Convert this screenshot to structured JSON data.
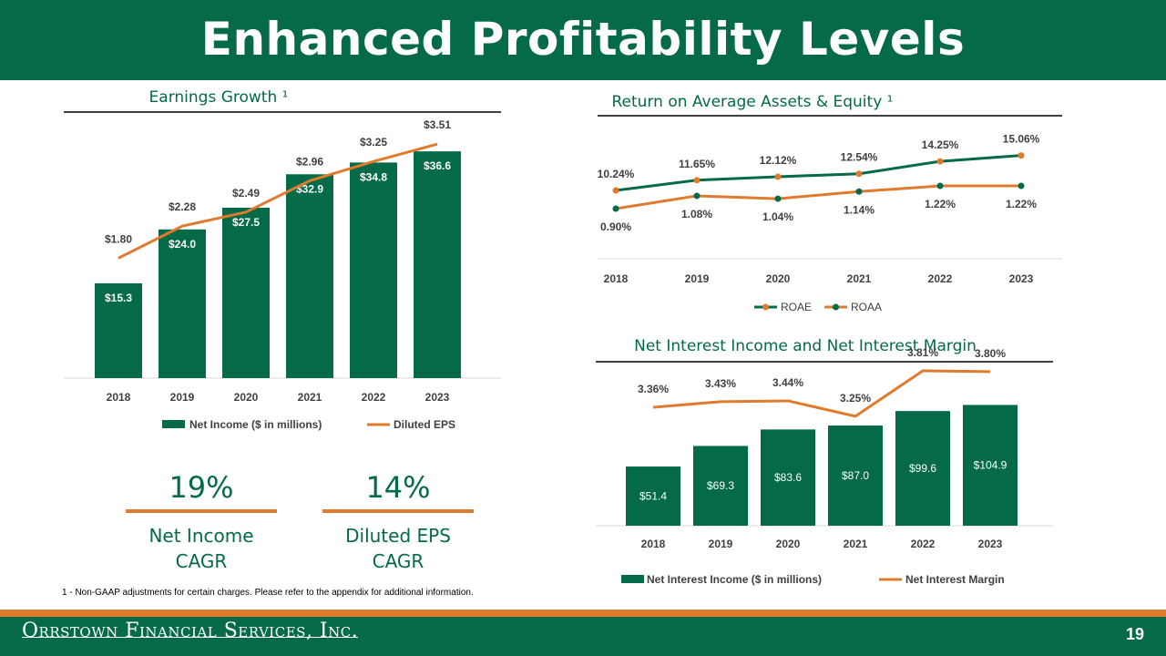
{
  "header": {
    "title": "Enhanced Profitability Levels"
  },
  "colors": {
    "green": "#046A48",
    "orange": "#E07B2E",
    "gridline": "#D9D9D9"
  },
  "kpis": [
    {
      "value": "19%",
      "label_line1": "Net Income",
      "label_line2": "CAGR"
    },
    {
      "value": "14%",
      "label_line1": "Diluted EPS",
      "label_line2": "CAGR"
    }
  ],
  "footnote": "1 - Non-GAAP adjustments for certain charges. Please refer to the appendix for additional information.",
  "footer": {
    "company": "Orrstown Financial Services, Inc.",
    "page_number": "19"
  },
  "chart_data": [
    {
      "id": "earnings",
      "type": "bar+line",
      "title": "Earnings Growth ¹",
      "categories": [
        "2018",
        "2019",
        "2020",
        "2021",
        "2022",
        "2023"
      ],
      "series": [
        {
          "name": "Net Income ($ in millions)",
          "kind": "bar",
          "values": [
            15.3,
            24.0,
            27.5,
            32.9,
            34.8,
            36.6
          ],
          "labels": [
            "$15.3",
            "$24.0",
            "$27.5",
            "$32.9",
            "$34.8",
            "$36.6"
          ]
        },
        {
          "name": "Diluted EPS",
          "kind": "line",
          "values": [
            1.8,
            2.28,
            2.49,
            2.96,
            3.25,
            3.51
          ],
          "labels": [
            "$1.80",
            "$2.28",
            "$2.49",
            "$2.96",
            "$3.25",
            "$3.51"
          ]
        }
      ],
      "bar_range": [
        0,
        40
      ],
      "line_range": [
        0,
        3.8
      ],
      "legend": "bottom"
    },
    {
      "id": "returns",
      "type": "line",
      "title": "Return on Average Assets & Equity ¹",
      "categories": [
        "2018",
        "2019",
        "2020",
        "2021",
        "2022",
        "2023"
      ],
      "series": [
        {
          "name": "ROAE",
          "marker_color": "#E07B2E",
          "line_color": "#046A48",
          "values": [
            10.24,
            11.65,
            12.12,
            12.54,
            14.25,
            15.06
          ],
          "labels": [
            "10.24%",
            "11.65%",
            "12.12%",
            "12.54%",
            "14.25%",
            "15.06%"
          ]
        },
        {
          "name": "ROAA",
          "marker_color": "#046A48",
          "line_color": "#E07B2E",
          "values": [
            0.9,
            1.08,
            1.04,
            1.14,
            1.22,
            1.22
          ],
          "labels": [
            "0.90%",
            "1.08%",
            "1.04%",
            "1.14%",
            "1.22%",
            "1.22%"
          ]
        }
      ],
      "legend": "bottom"
    },
    {
      "id": "nii",
      "type": "bar+line",
      "title": "Net Interest Income and Net Interest Margin",
      "categories": [
        "2018",
        "2019",
        "2020",
        "2021",
        "2022",
        "2023"
      ],
      "series": [
        {
          "name": "Net Interest Income ($ in millions)",
          "kind": "bar",
          "values": [
            51.4,
            69.3,
            83.6,
            87.0,
            99.6,
            104.9
          ],
          "labels": [
            "$51.4",
            "$69.3",
            "$83.6",
            "$87.0",
            "$99.6",
            "$104.9"
          ]
        },
        {
          "name": "Net Interest Margin",
          "kind": "line",
          "values": [
            3.36,
            3.43,
            3.44,
            3.25,
            3.81,
            3.8
          ],
          "labels": [
            "3.36%",
            "3.43%",
            "3.44%",
            "3.25%",
            "3.81%",
            "3.80%"
          ]
        }
      ],
      "bar_range": [
        0,
        110
      ],
      "line_range": [
        1.9,
        3.9
      ],
      "legend": "bottom"
    }
  ]
}
